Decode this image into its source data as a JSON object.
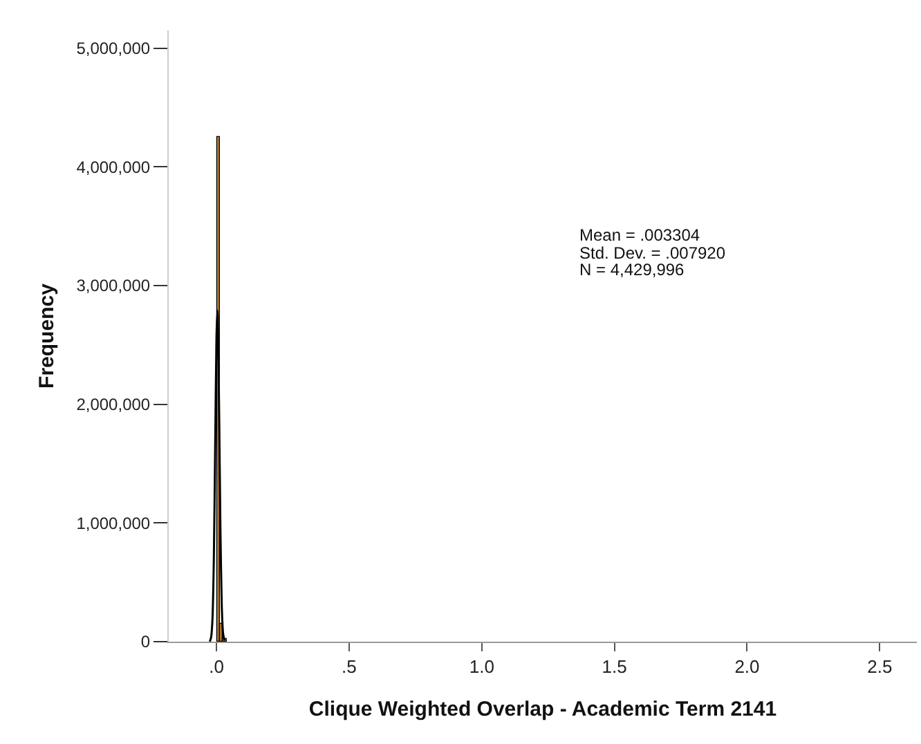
{
  "chart_data": {
    "type": "histogram",
    "xlabel": "Clique Weighted Overlap - Academic Term 2141",
    "ylabel": "Frequency",
    "bins": [
      0,
      0.0125,
      0.025,
      0.0375
    ],
    "values": [
      4250000,
      150000,
      20000
    ],
    "color": "#b0772f",
    "series": [
      {
        "type": "line",
        "color": "#000000",
        "x": [
          -0.025,
          -0.02,
          -0.015,
          -0.01,
          -0.005,
          0,
          0.0033,
          0.005,
          0.01,
          0.015,
          0.02,
          0.025,
          0.03
        ],
        "values": [
          0,
          40000,
          190000,
          680000,
          1610000,
          2560000,
          2790000,
          2730000,
          1950000,
          940000,
          300000,
          70000,
          10000
        ]
      }
    ],
    "xlim": [
      -0.18,
      2.64
    ],
    "xticks": [
      {
        "value": 0,
        "label": ".0"
      },
      {
        "value": 0.5,
        "label": ".5"
      },
      {
        "value": 1,
        "label": "1.0"
      },
      {
        "value": 1.5,
        "label": "1.5"
      },
      {
        "value": 2,
        "label": "2.0"
      },
      {
        "value": 2.5,
        "label": "2.5"
      }
    ],
    "ylim": [
      0,
      5150000
    ],
    "yticks": [
      {
        "value": 0,
        "label": "0"
      },
      {
        "value": 1000000,
        "label": "1,000,000"
      },
      {
        "value": 2000000,
        "label": "2,000,000"
      },
      {
        "value": 3000000,
        "label": "3,000,000"
      },
      {
        "value": 4000000,
        "label": "4,000,000"
      },
      {
        "value": 5000000,
        "label": "5,000,000"
      }
    ],
    "annotations": [
      "Mean = .003304",
      "Std. Dev. = .007920",
      "N = 4,429,996"
    ]
  }
}
